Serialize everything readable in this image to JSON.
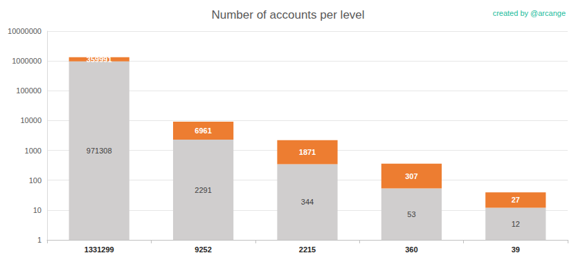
{
  "chart_data": {
    "type": "bar",
    "title": "Number of accounts per level",
    "annotation": "created by @arcange",
    "categories": [
      "1331299",
      "9252",
      "2215",
      "360",
      "39"
    ],
    "series": [
      {
        "color": "#d0cece",
        "values": [
          971308,
          2291,
          344,
          53,
          12
        ]
      },
      {
        "color": "#ed7d31",
        "values": [
          359991,
          6961,
          1871,
          307,
          27
        ]
      }
    ],
    "stacked": true,
    "log": "y",
    "ylim": [
      1,
      10000000
    ],
    "yticks": [
      1,
      10,
      100,
      1000,
      10000,
      100000,
      1000000,
      10000000
    ],
    "grid": true,
    "data_labels": true
  }
}
